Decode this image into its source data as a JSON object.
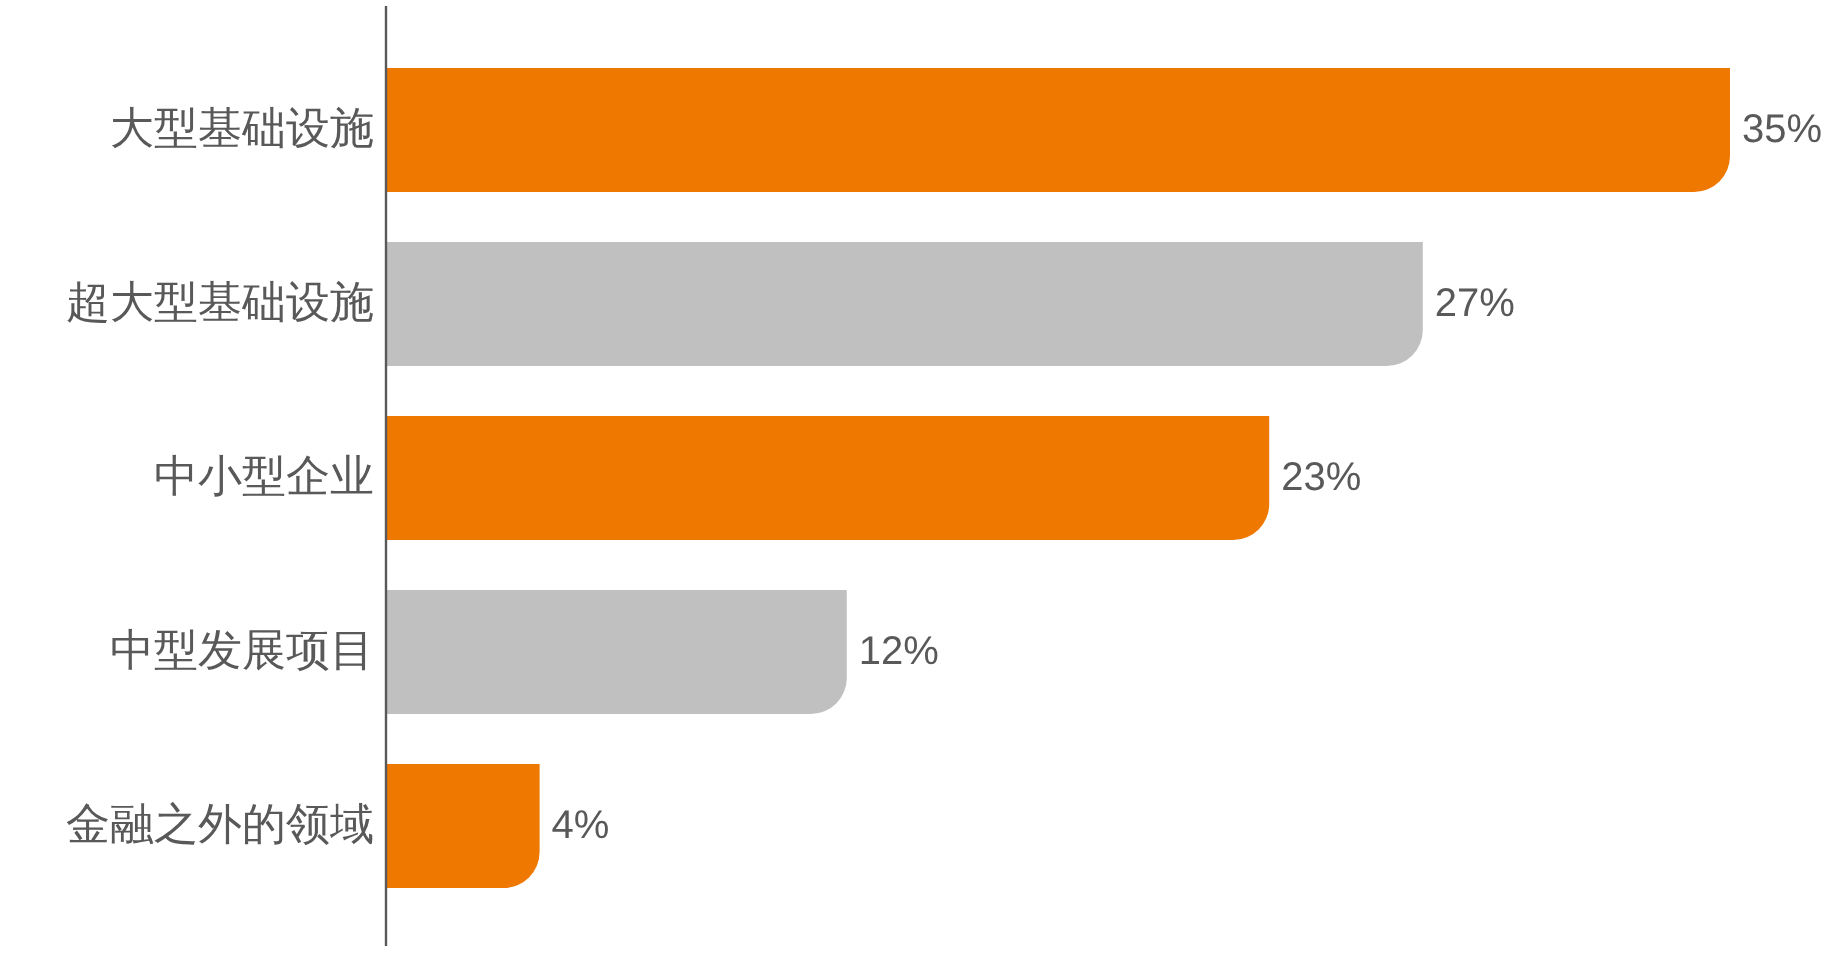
{
  "chart_data": {
    "type": "bar",
    "orientation": "horizontal",
    "categories": [
      "大型基础设施",
      "超大型基础设施",
      "中小型企业",
      "中型发展项目",
      "金融之外的领域"
    ],
    "values": [
      35,
      27,
      23,
      12,
      4
    ],
    "colors": [
      "#ee7800",
      "#bfc0bf",
      "#ee7800",
      "#bfc0bf",
      "#ee7800"
    ],
    "value_labels": [
      "35%",
      "27%",
      "23%",
      "12%",
      "4%"
    ]
  }
}
